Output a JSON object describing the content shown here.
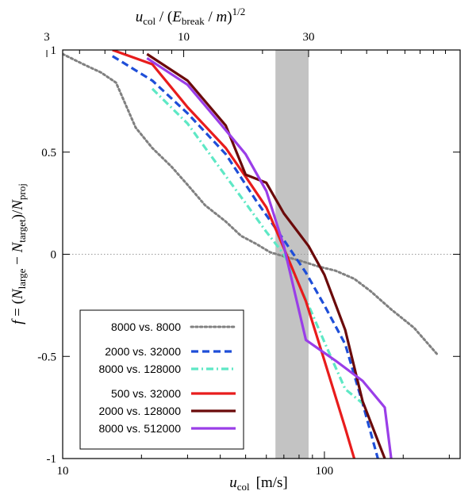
{
  "chart_data": {
    "type": "line",
    "title": "",
    "xlabel": "u_col [m/s]",
    "xlabel_parts": {
      "var": "u",
      "sub": "col",
      "unit": "[m/s]"
    },
    "top_xlabel": "u_col / (E_break / m)^1/2",
    "top_xlabel_parts": {
      "var": "u",
      "sub": "col",
      "mid": " / (",
      "var2": "E",
      "sub2": "break",
      "tail": " / ",
      "m": "m",
      "close": ")",
      "sup": "1/2"
    },
    "ylabel": "f = (N_large − N_target)/N_proj",
    "ylabel_parts": {
      "f": "f",
      "eq": " = (",
      "n1": "N",
      "s1": "large",
      "minus": " − ",
      "n2": "N",
      "s2": "target",
      "div": ")/",
      "n3": "N",
      "s3": "proj"
    },
    "x_scale": "log",
    "xlim": [
      10,
      330
    ],
    "ylim": [
      -1,
      1
    ],
    "x_ticks": [
      10,
      100
    ],
    "x_tick_labels": [
      "10",
      "100"
    ],
    "top_ticks": [
      3,
      10,
      30
    ],
    "top_tick_labels": [
      "3",
      "10",
      "30"
    ],
    "top_axis_factor": 2.9,
    "y_ticks": [
      1,
      0.5,
      0,
      -0.5,
      -1
    ],
    "y_tick_labels": [
      "1",
      "0.5",
      "0",
      "-0.5",
      "-1"
    ],
    "zero_line": true,
    "shaded_band": {
      "x_range": [
        65,
        87
      ],
      "color": "#c3c3c3"
    },
    "legend_position": "bottom-left",
    "series": [
      {
        "name": "8000 vs. 8000",
        "color": "#808080",
        "style": "dotted",
        "x": [
          10,
          12,
          14,
          16,
          19,
          22,
          26,
          30,
          35,
          42,
          48,
          55,
          62,
          70,
          80,
          95,
          110,
          130,
          150,
          180,
          220,
          270
        ],
        "y": [
          0.98,
          0.93,
          0.89,
          0.84,
          0.62,
          0.52,
          0.43,
          0.34,
          0.24,
          0.16,
          0.09,
          0.05,
          0.01,
          -0.01,
          -0.03,
          -0.06,
          -0.08,
          -0.12,
          -0.18,
          -0.27,
          -0.36,
          -0.49
        ]
      },
      {
        "name": "2000 vs. 32000",
        "color": "#1e4ed8",
        "style": "dashed",
        "group_gap": true,
        "x": [
          15.5,
          22,
          30,
          42,
          55,
          70,
          85,
          100,
          120,
          140,
          160
        ],
        "y": [
          0.97,
          0.85,
          0.69,
          0.49,
          0.26,
          0.07,
          -0.09,
          -0.25,
          -0.44,
          -0.73,
          -1.0
        ]
      },
      {
        "name": "8000 vs. 128000",
        "color": "#5ee8c5",
        "style": "dashdot",
        "x": [
          22,
          30,
          40,
          50,
          60,
          70,
          85,
          100,
          120,
          140
        ],
        "y": [
          0.81,
          0.64,
          0.42,
          0.25,
          0.11,
          0.0,
          -0.22,
          -0.43,
          -0.66,
          -0.73
        ]
      },
      {
        "name": "500 vs. 32000",
        "color": "#e81c1c",
        "style": "solid",
        "group_gap": true,
        "x": [
          15.5,
          22,
          30,
          42,
          50,
          60,
          70,
          85,
          100,
          120,
          130
        ],
        "y": [
          1.0,
          0.93,
          0.72,
          0.52,
          0.38,
          0.23,
          0.03,
          -0.23,
          -0.52,
          -0.85,
          -1.0
        ]
      },
      {
        "name": "2000 vs. 128000",
        "color": "#6b0a0a",
        "style": "solid",
        "x": [
          21,
          30,
          42,
          50,
          60,
          70,
          87,
          100,
          120,
          140,
          170
        ],
        "y": [
          0.98,
          0.85,
          0.63,
          0.39,
          0.35,
          0.2,
          0.04,
          -0.1,
          -0.37,
          -0.72,
          -1.0
        ]
      },
      {
        "name": "8000 vs. 512000",
        "color": "#9a3ee8",
        "style": "solid",
        "x": [
          21,
          30,
          40,
          50,
          60,
          70,
          85,
          110,
          140,
          170,
          180
        ],
        "y": [
          0.96,
          0.83,
          0.64,
          0.49,
          0.31,
          0.04,
          -0.42,
          -0.52,
          -0.62,
          -0.75,
          -1.0
        ]
      }
    ]
  }
}
